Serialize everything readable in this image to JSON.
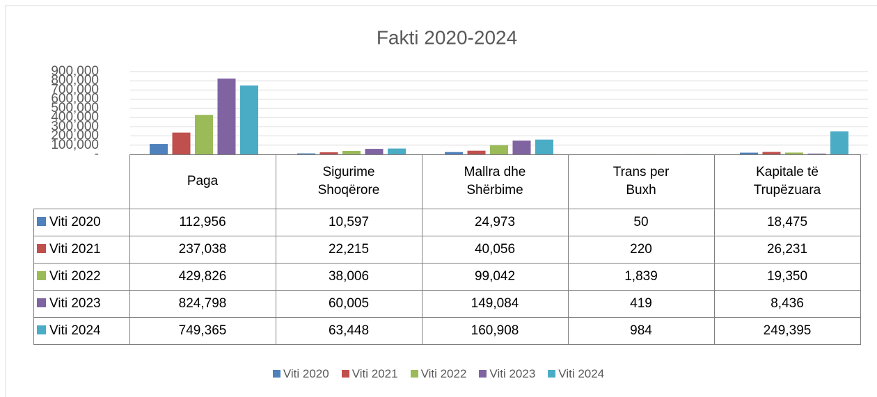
{
  "chart_data": {
    "type": "bar",
    "title": "Fakti 2020-2024",
    "categories": [
      "Paga",
      "Sigurime Shoqërore",
      "Mallra dhe Shërbime",
      "Trans per Buxh",
      "Kapitale të Trupëzuara"
    ],
    "series": [
      {
        "name": "Viti 2020",
        "color": "#4f81bd",
        "values": [
          112956,
          10597,
          24973,
          50,
          18475
        ],
        "value_labels": [
          "112,956",
          "10,597",
          "24,973",
          "50",
          "18,475"
        ]
      },
      {
        "name": "Viti 2021",
        "color": "#c0504d",
        "values": [
          237038,
          22215,
          40056,
          220,
          26231
        ],
        "value_labels": [
          "237,038",
          "22,215",
          "40,056",
          "220",
          "26,231"
        ]
      },
      {
        "name": "Viti 2022",
        "color": "#9bbb59",
        "values": [
          429826,
          38006,
          99042,
          1839,
          19350
        ],
        "value_labels": [
          "429,826",
          "38,006",
          "99,042",
          "1,839",
          "19,350"
        ]
      },
      {
        "name": "Viti 2023",
        "color": "#8064a2",
        "values": [
          824798,
          60005,
          149084,
          419,
          8436
        ],
        "value_labels": [
          "824,798",
          "60,005",
          "149,084",
          "419",
          "8,436"
        ]
      },
      {
        "name": "Viti 2024",
        "color": "#4bacc6",
        "values": [
          749365,
          63448,
          160908,
          984,
          249395
        ],
        "value_labels": [
          "749,365",
          "63,448",
          "160,908",
          "984",
          "249,395"
        ]
      }
    ],
    "ylim": [
      0,
      900000
    ],
    "yticks": [
      {
        "value": 0,
        "label": "-"
      },
      {
        "value": 100000,
        "label": "100,000"
      },
      {
        "value": 200000,
        "label": "200,000"
      },
      {
        "value": 300000,
        "label": "300,000"
      },
      {
        "value": 400000,
        "label": "400,000"
      },
      {
        "value": 500000,
        "label": "500,000"
      },
      {
        "value": 600000,
        "label": "600,000"
      },
      {
        "value": 700000,
        "label": "700,000"
      },
      {
        "value": 800000,
        "label": "800,000"
      },
      {
        "value": 900000,
        "label": "900,000"
      }
    ],
    "grid": true,
    "legend": "bottom"
  }
}
